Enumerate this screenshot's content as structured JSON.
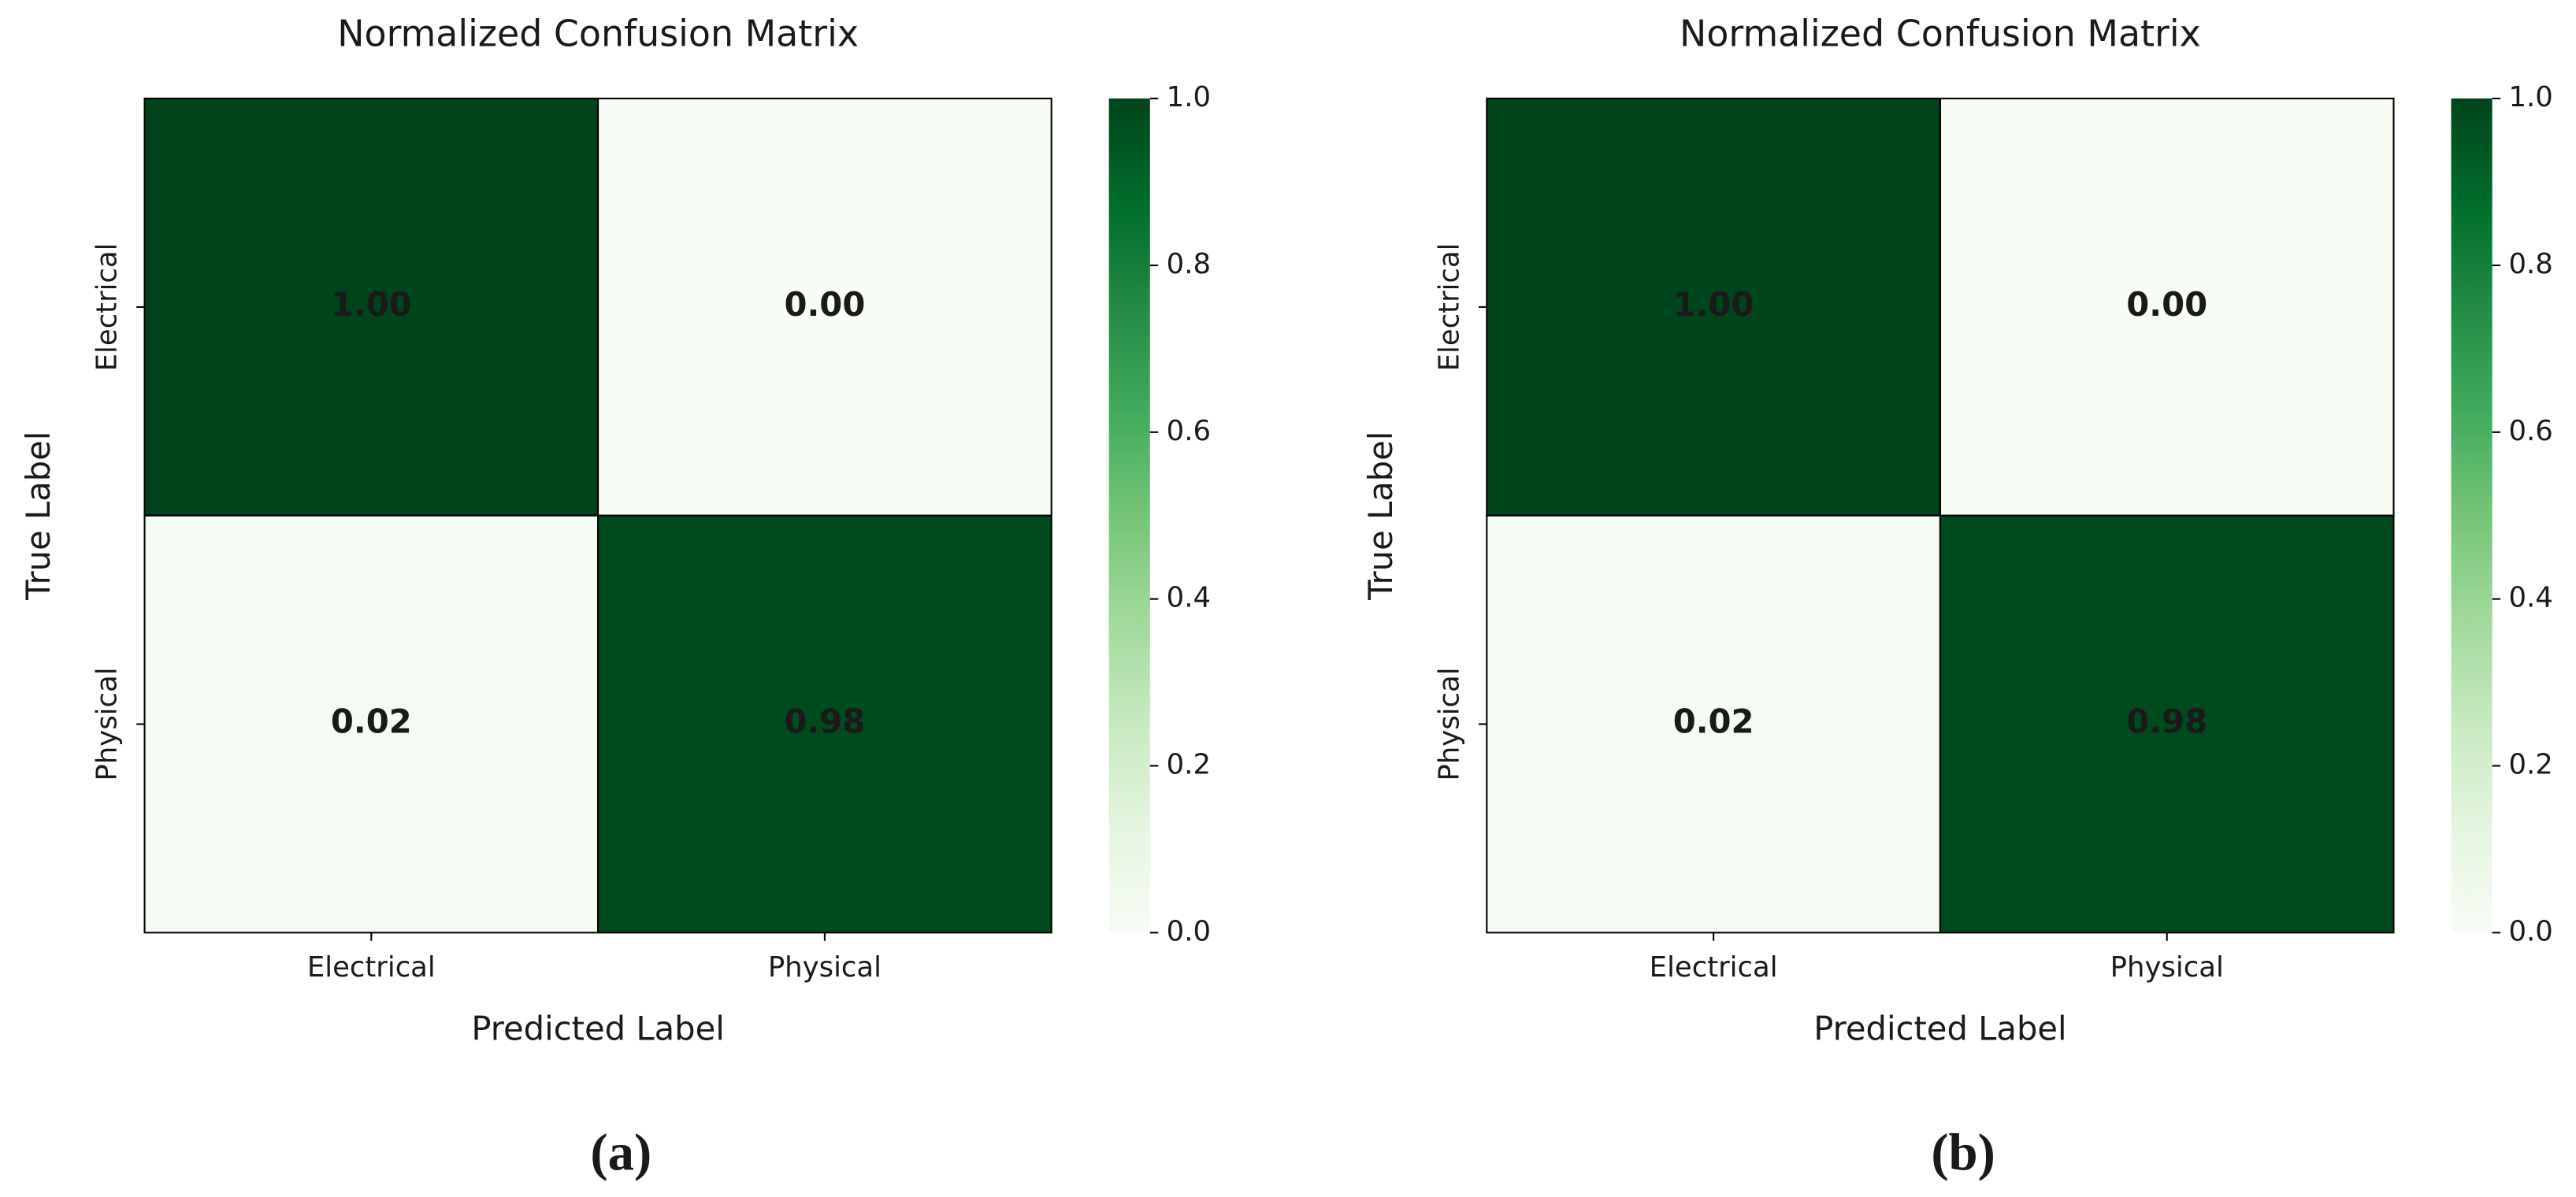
{
  "chart_data": [
    {
      "type": "heatmap",
      "title": "Normalized Confusion Matrix",
      "x_label": "Predicted Label",
      "y_label": "True Label",
      "x_categories": [
        "Electrical",
        "Physical"
      ],
      "y_categories": [
        "Electrical",
        "Physical"
      ],
      "values": [
        [
          1,
          0
        ],
        [
          0.02,
          0.98
        ]
      ],
      "value_labels": [
        [
          "1.00",
          "0.00"
        ],
        [
          "0.02",
          "0.98"
        ]
      ],
      "clim": [
        0,
        1
      ],
      "cticks": [
        {
          "value": 0,
          "label": "0.0"
        },
        {
          "value": 0.2,
          "label": "0.2"
        },
        {
          "value": 0.4,
          "label": "0.4"
        },
        {
          "value": 0.6,
          "label": "0.6"
        },
        {
          "value": 0.8,
          "label": "0.8"
        },
        {
          "value": 1,
          "label": "1.0"
        }
      ],
      "colormap": [
        "#f7fcf5",
        "#e5f5e0",
        "#c7e9c0",
        "#a1d99b",
        "#74c476",
        "#41ab5d",
        "#238b45",
        "#006d2c",
        "#00441b"
      ],
      "caption": "(a)"
    },
    {
      "type": "heatmap",
      "title": "Normalized Confusion Matrix",
      "x_label": "Predicted Label",
      "y_label": "True Label",
      "x_categories": [
        "Electrical",
        "Physical"
      ],
      "y_categories": [
        "Electrical",
        "Physical"
      ],
      "values": [
        [
          1,
          0
        ],
        [
          0.02,
          0.98
        ]
      ],
      "value_labels": [
        [
          "1.00",
          "0.00"
        ],
        [
          "0.02",
          "0.98"
        ]
      ],
      "clim": [
        0,
        1
      ],
      "cticks": [
        {
          "value": 0,
          "label": "0.0"
        },
        {
          "value": 0.2,
          "label": "0.2"
        },
        {
          "value": 0.4,
          "label": "0.4"
        },
        {
          "value": 0.6,
          "label": "0.6"
        },
        {
          "value": 0.8,
          "label": "0.8"
        },
        {
          "value": 1,
          "label": "1.0"
        }
      ],
      "colormap": [
        "#f7fcf5",
        "#e5f5e0",
        "#c7e9c0",
        "#a1d99b",
        "#74c476",
        "#41ab5d",
        "#238b45",
        "#006d2c",
        "#00441b"
      ],
      "caption": "(b)"
    }
  ]
}
